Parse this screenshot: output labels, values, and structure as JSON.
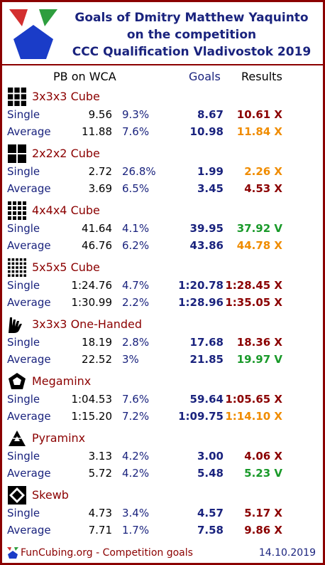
{
  "header": {
    "title_line1": "Goals of Dmitry Matthew Yaquinto",
    "title_line2": "on the competition",
    "title_line3": "CCC Qualification Vladivostok 2019"
  },
  "columns": {
    "pb": "PB on WCA",
    "goals": "Goals",
    "results": "Results"
  },
  "colors": {
    "frame": "#8b0000",
    "navy": "#1a237e",
    "red": "#8b0000",
    "orange": "#f08c00",
    "green": "#1a9a2a"
  },
  "events": [
    {
      "title": "3x3x3 Cube",
      "icon": "cube-3x3-icon",
      "single": {
        "label": "Single",
        "pb": "9.56",
        "pct": "9.3%",
        "goal": "8.67",
        "result": "10.61 X",
        "color": "red"
      },
      "average": {
        "label": "Average",
        "pb": "11.88",
        "pct": "7.6%",
        "goal": "10.98",
        "result": "11.84 X",
        "color": "orange"
      }
    },
    {
      "title": "2x2x2 Cube",
      "icon": "cube-2x2-icon",
      "single": {
        "label": "Single",
        "pb": "2.72",
        "pct": "26.8%",
        "goal": "1.99",
        "result": "2.26 X",
        "color": "orange"
      },
      "average": {
        "label": "Average",
        "pb": "3.69",
        "pct": "6.5%",
        "goal": "3.45",
        "result": "4.53 X",
        "color": "red"
      }
    },
    {
      "title": "4x4x4 Cube",
      "icon": "cube-4x4-icon",
      "single": {
        "label": "Single",
        "pb": "41.64",
        "pct": "4.1%",
        "goal": "39.95",
        "result": "37.92 V",
        "color": "green"
      },
      "average": {
        "label": "Average",
        "pb": "46.76",
        "pct": "6.2%",
        "goal": "43.86",
        "result": "44.78 X",
        "color": "orange"
      }
    },
    {
      "title": "5x5x5 Cube",
      "icon": "cube-5x5-icon",
      "single": {
        "label": "Single",
        "pb": "1:24.76",
        "pct": "4.7%",
        "goal": "1:20.78",
        "result": "1:28.45 X",
        "color": "red"
      },
      "average": {
        "label": "Average",
        "pb": "1:30.99",
        "pct": "2.2%",
        "goal": "1:28.96",
        "result": "1:35.05 X",
        "color": "red"
      }
    },
    {
      "title": "3x3x3 One-Handed",
      "icon": "one-handed-icon",
      "single": {
        "label": "Single",
        "pb": "18.19",
        "pct": "2.8%",
        "goal": "17.68",
        "result": "18.36 X",
        "color": "red"
      },
      "average": {
        "label": "Average",
        "pb": "22.52",
        "pct": "3%",
        "goal": "21.85",
        "result": "19.97 V",
        "color": "green"
      }
    },
    {
      "title": "Megaminx",
      "icon": "megaminx-icon",
      "single": {
        "label": "Single",
        "pb": "1:04.53",
        "pct": "7.6%",
        "goal": "59.64",
        "result": "1:05.65 X",
        "color": "red"
      },
      "average": {
        "label": "Average",
        "pb": "1:15.20",
        "pct": "7.2%",
        "goal": "1:09.75",
        "result": "1:14.10 X",
        "color": "orange"
      }
    },
    {
      "title": "Pyraminx",
      "icon": "pyraminx-icon",
      "single": {
        "label": "Single",
        "pb": "3.13",
        "pct": "4.2%",
        "goal": "3.00",
        "result": "4.06 X",
        "color": "red"
      },
      "average": {
        "label": "Average",
        "pb": "5.72",
        "pct": "4.2%",
        "goal": "5.48",
        "result": "5.23 V",
        "color": "green"
      }
    },
    {
      "title": "Skewb",
      "icon": "skewb-icon",
      "single": {
        "label": "Single",
        "pb": "4.73",
        "pct": "3.4%",
        "goal": "4.57",
        "result": "5.17 X",
        "color": "red"
      },
      "average": {
        "label": "Average",
        "pb": "7.71",
        "pct": "1.7%",
        "goal": "7.58",
        "result": "9.86 X",
        "color": "red"
      }
    }
  ],
  "footer": {
    "text": "FunCubing.org - Competition goals",
    "date": "14.10.2019"
  }
}
